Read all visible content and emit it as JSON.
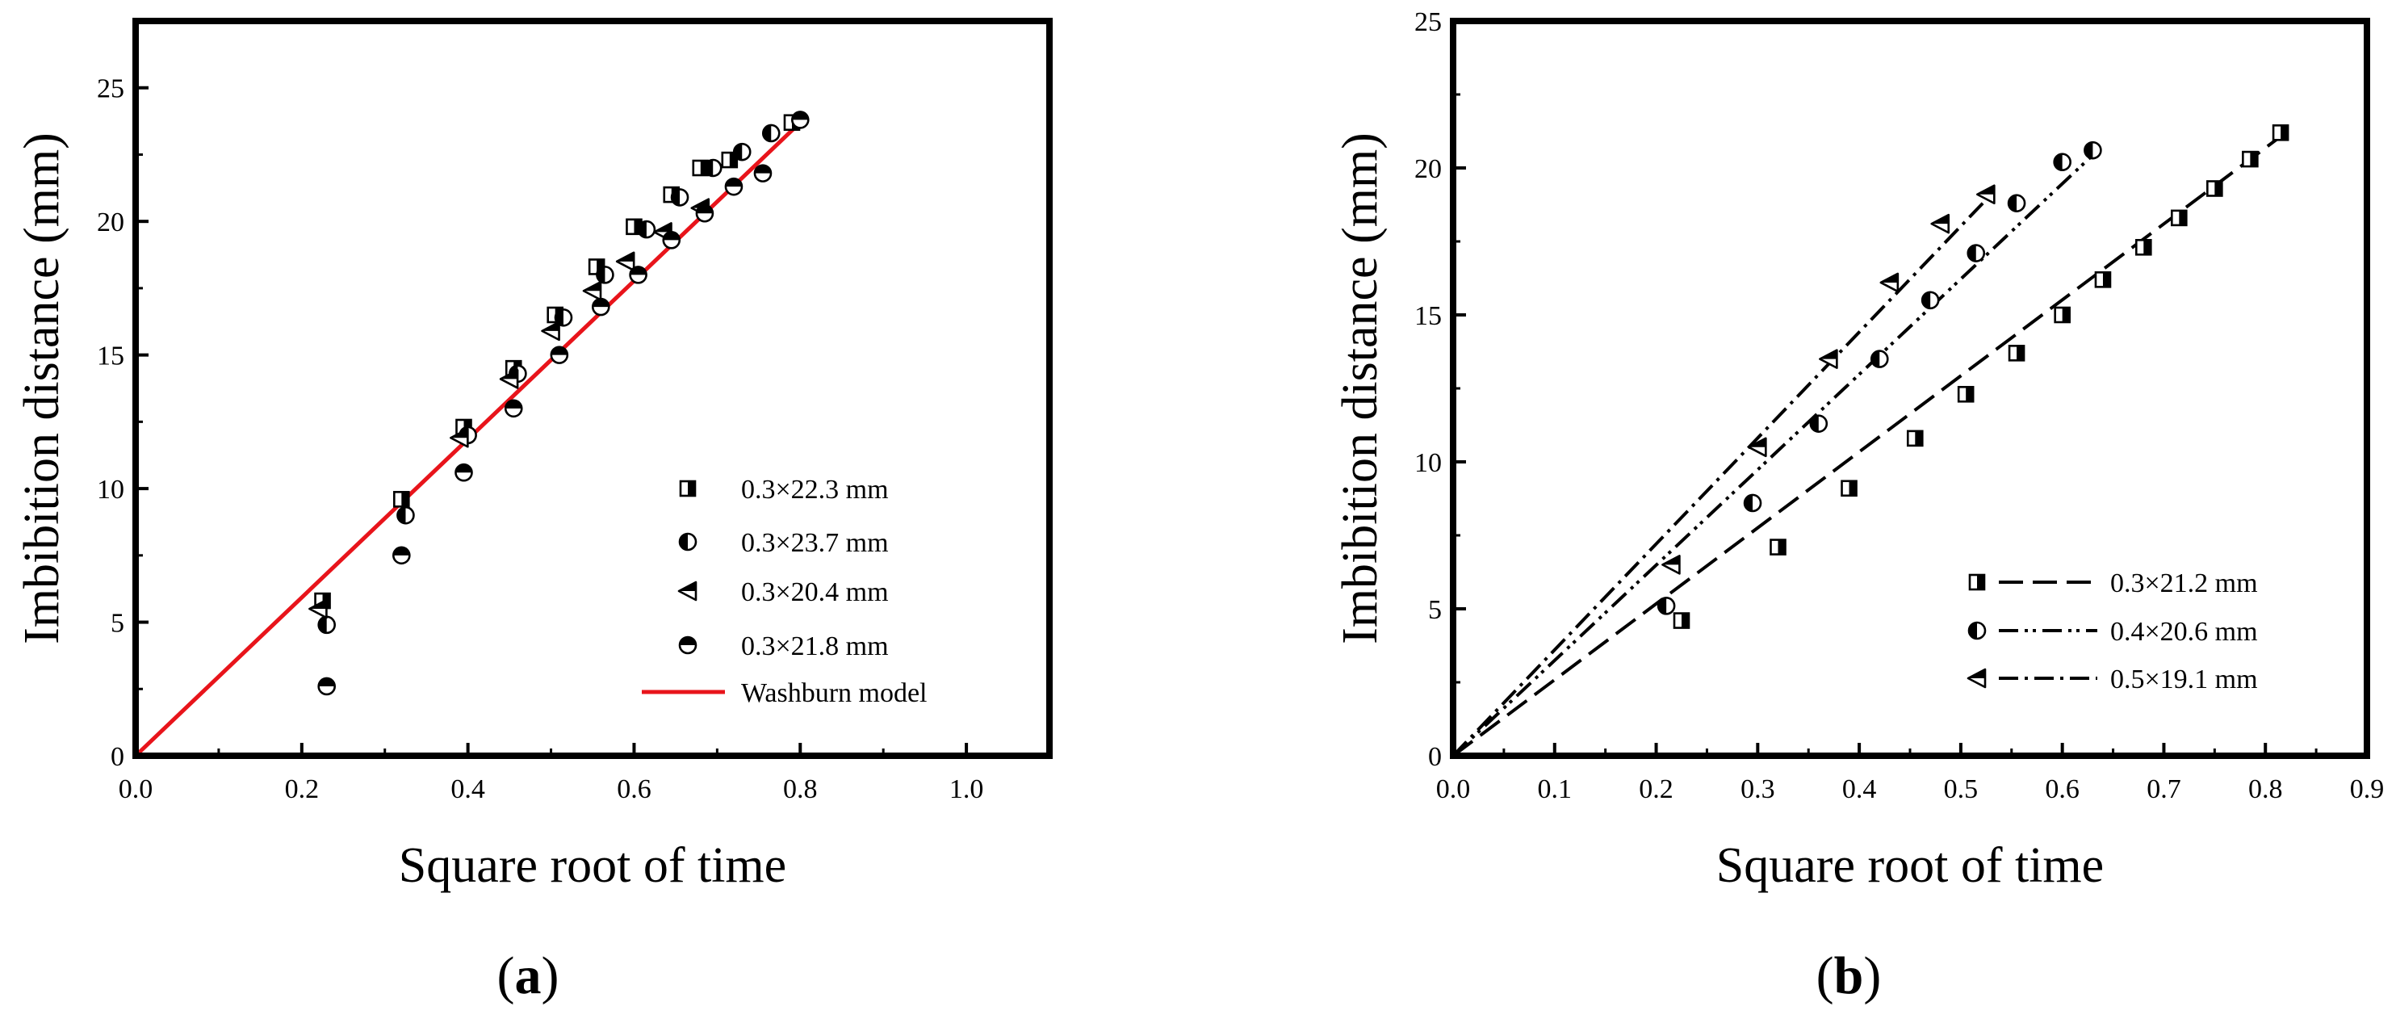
{
  "chart_data": [
    {
      "panel_label_open": "(",
      "panel_label_letter": "a",
      "panel_label_close": ")",
      "type": "scatter",
      "xlabel": "Square root of time",
      "ylabel": "Imbibition distance (mm)",
      "xlim": [
        0,
        1.1
      ],
      "ylim": [
        0,
        27.5
      ],
      "xticks": [
        0.0,
        0.2,
        0.4,
        0.6,
        0.8,
        1.0
      ],
      "xtick_labels": [
        "0.0",
        "0.2",
        "0.4",
        "0.6",
        "0.8",
        "1.0"
      ],
      "yticks": [
        0,
        5,
        10,
        15,
        20,
        25
      ],
      "ytick_labels": [
        "0",
        "5",
        "10",
        "15",
        "20",
        "25"
      ],
      "legend_position": "lower-right",
      "series": [
        {
          "name": "0.3×22.3 mm",
          "marker": "square-half-right",
          "x": [
            0.225,
            0.32,
            0.395,
            0.455,
            0.505,
            0.555,
            0.6,
            0.645,
            0.68,
            0.715,
            0.79
          ],
          "y": [
            5.8,
            9.6,
            12.3,
            14.5,
            16.5,
            18.3,
            19.8,
            21.0,
            22.0,
            22.3,
            23.7
          ]
        },
        {
          "name": "0.3×23.7 mm",
          "marker": "circle-half-left",
          "x": [
            0.23,
            0.325,
            0.4,
            0.46,
            0.515,
            0.565,
            0.615,
            0.655,
            0.695,
            0.73,
            0.765
          ],
          "y": [
            4.9,
            9.0,
            12.0,
            14.3,
            16.4,
            18.0,
            19.7,
            20.9,
            22.0,
            22.6,
            23.3
          ]
        },
        {
          "name": "0.3×20.4 mm",
          "marker": "triangle-left",
          "x": [
            0.22,
            0.39,
            0.45,
            0.5,
            0.55,
            0.59,
            0.635,
            0.68
          ],
          "y": [
            5.5,
            11.9,
            14.1,
            15.9,
            17.4,
            18.5,
            19.6,
            20.5
          ]
        },
        {
          "name": "0.3×21.8 mm",
          "marker": "circle-half-top",
          "x": [
            0.23,
            0.32,
            0.395,
            0.455,
            0.51,
            0.56,
            0.605,
            0.645,
            0.685,
            0.72,
            0.755,
            0.8
          ],
          "y": [
            2.6,
            7.5,
            10.6,
            13.0,
            15.0,
            16.8,
            18.0,
            19.3,
            20.3,
            21.3,
            21.8,
            23.8
          ]
        },
        {
          "name": "Washburn model",
          "type": "line",
          "color": "#e8141b",
          "x": [
            0.0,
            0.8
          ],
          "y": [
            0.0,
            23.7
          ]
        }
      ]
    },
    {
      "panel_label_open": "(",
      "panel_label_letter": "b",
      "panel_label_close": ")",
      "type": "scatter",
      "xlabel": "Square root of time",
      "ylabel": "Imbibition distance (mm)",
      "xlim": [
        0,
        0.9
      ],
      "ylim": [
        0,
        25
      ],
      "xticks": [
        0.0,
        0.1,
        0.2,
        0.3,
        0.4,
        0.5,
        0.6,
        0.7,
        0.8,
        0.9
      ],
      "xtick_labels": [
        "0.0",
        "0.1",
        "0.2",
        "0.3",
        "0.4",
        "0.5",
        "0.6",
        "0.7",
        "0.8",
        "0.9"
      ],
      "yticks": [
        0,
        5,
        10,
        15,
        20,
        25
      ],
      "ytick_labels": [
        "0",
        "5",
        "10",
        "15",
        "20",
        "25"
      ],
      "legend_position": "lower-right",
      "series": [
        {
          "name": "0.3×21.2 mm",
          "marker": "square-half-right",
          "dash": "long-dash",
          "x": [
            0.225,
            0.32,
            0.39,
            0.455,
            0.505,
            0.555,
            0.6,
            0.64,
            0.68,
            0.715,
            0.75,
            0.785,
            0.815
          ],
          "y": [
            4.6,
            7.1,
            9.1,
            10.8,
            12.3,
            13.7,
            15.0,
            16.2,
            17.3,
            18.3,
            19.3,
            20.3,
            21.2
          ],
          "fit_x": [
            0.0,
            0.82
          ],
          "fit_y": [
            0.0,
            21.2
          ]
        },
        {
          "name": "0.4×20.6 mm",
          "marker": "circle-half-left",
          "dash": "dash-dot-dot",
          "x": [
            0.21,
            0.295,
            0.36,
            0.42,
            0.47,
            0.515,
            0.555,
            0.6,
            0.63
          ],
          "y": [
            5.1,
            8.6,
            11.3,
            13.5,
            15.5,
            17.1,
            18.8,
            20.2,
            20.6
          ],
          "fit_x": [
            0.0,
            0.635
          ],
          "fit_y": [
            0.0,
            20.6
          ]
        },
        {
          "name": "0.5×19.1 mm",
          "marker": "triangle-left",
          "dash": "dash-dot",
          "x": [
            0.215,
            0.3,
            0.37,
            0.43,
            0.48,
            0.525
          ],
          "y": [
            6.5,
            10.5,
            13.5,
            16.1,
            18.1,
            19.1
          ],
          "fit_x": [
            0.0,
            0.53
          ],
          "fit_y": [
            0.0,
            19.1
          ]
        }
      ]
    }
  ]
}
